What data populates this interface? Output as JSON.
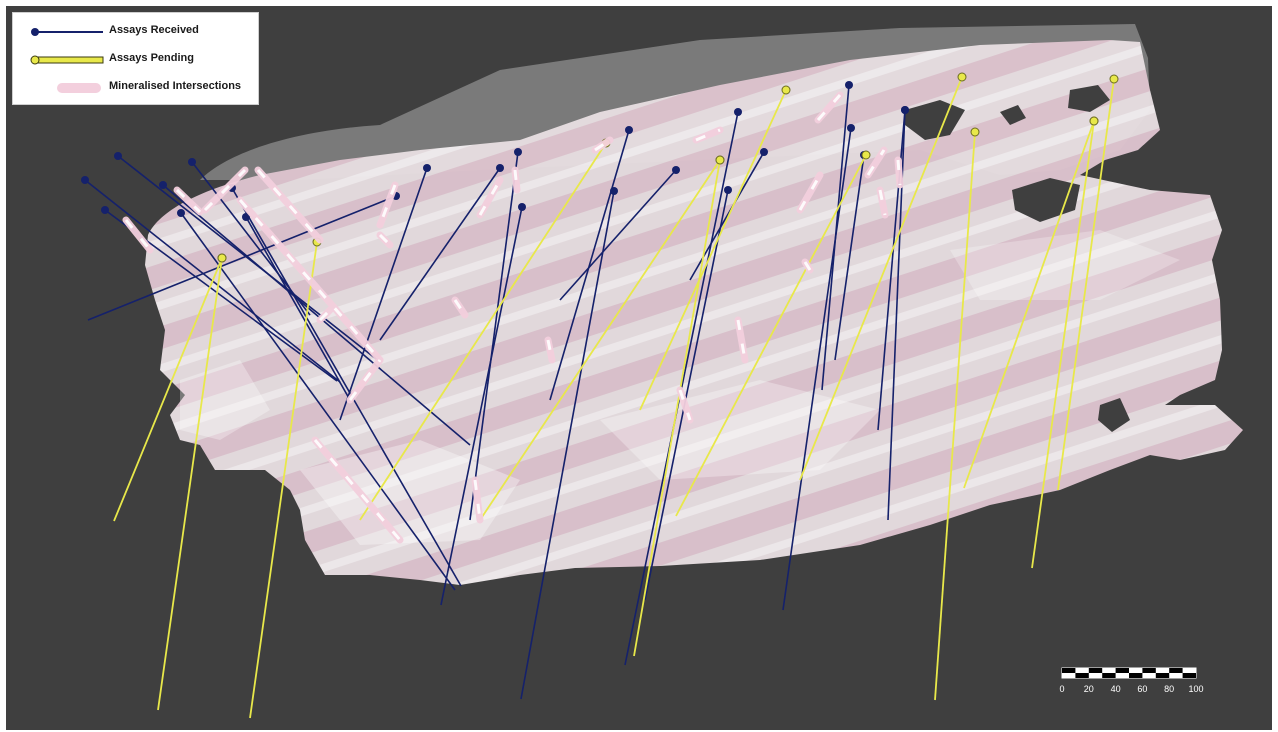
{
  "legend": {
    "received": "Assays Received",
    "pending": "Assays Pending",
    "intersections": "Mineralised Intersections"
  },
  "scale": {
    "ticks": [
      "0",
      "20",
      "40",
      "60",
      "80",
      "100"
    ]
  },
  "colors": {
    "background": "#3f3f3f",
    "orebody": "#e8dde2",
    "orebody_stripe": "#dcb9c7",
    "received": "#15216b",
    "pending": "#e8e84a",
    "intersection": "#f3cfdd"
  }
}
